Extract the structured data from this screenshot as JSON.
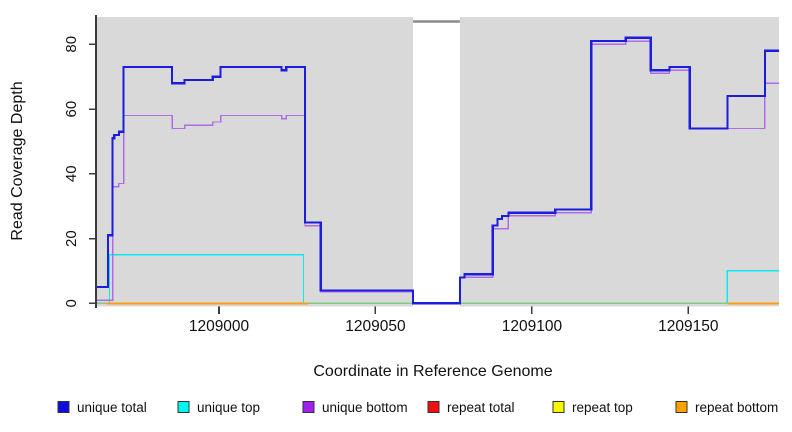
{
  "chart_data": {
    "type": "line",
    "subtype": "step-coverage",
    "title": "",
    "xlabel": "Coordinate in Reference Genome",
    "ylabel": "Read Coverage Depth",
    "xlim": [
      1208961,
      1209179
    ],
    "ylim": [
      0,
      87
    ],
    "x_ticks": [
      "1209000",
      "1209050",
      "1209100",
      "1209150"
    ],
    "x_tick_values": [
      1209000,
      1209050,
      1209100,
      1209150
    ],
    "y_ticks": [
      "0",
      "20",
      "40",
      "60",
      "80"
    ],
    "y_tick_values": [
      0,
      20,
      40,
      60,
      80
    ],
    "grid": "off",
    "background": "#d9d9d9",
    "zero_line": {
      "value": 0,
      "color": "#82cc82"
    },
    "masked_region": {
      "x_start": 1209062,
      "x_end": 1209077,
      "fill": "#ffffff",
      "cap_color": "#8a8a8a",
      "cap_value": 87
    },
    "legend_position": "bottom",
    "series": [
      {
        "name": "unique total",
        "color": "#1d1de0",
        "width": 2.2,
        "steps": [
          [
            1208961,
            5
          ],
          [
            1208964.5,
            21
          ],
          [
            1208966,
            51
          ],
          [
            1208966.5,
            52
          ],
          [
            1208968,
            53
          ],
          [
            1208969.5,
            73
          ],
          [
            1208985,
            68
          ],
          [
            1208989,
            69
          ],
          [
            1208998,
            70
          ],
          [
            1209000.5,
            73
          ],
          [
            1209020,
            72
          ],
          [
            1209021.5,
            73
          ],
          [
            1209027.5,
            25
          ],
          [
            1209032.5,
            4
          ],
          [
            1209062,
            0
          ],
          [
            1209077,
            8
          ],
          [
            1209078.5,
            9
          ],
          [
            1209087.5,
            24
          ],
          [
            1209089,
            26
          ],
          [
            1209090.5,
            27
          ],
          [
            1209092.5,
            28
          ],
          [
            1209107.5,
            29
          ],
          [
            1209119,
            81
          ],
          [
            1209130,
            82
          ],
          [
            1209138,
            72
          ],
          [
            1209144,
            73
          ],
          [
            1209150.5,
            54
          ],
          [
            1209162.5,
            64
          ],
          [
            1209174.5,
            78
          ]
        ],
        "x_end": 1209179
      },
      {
        "name": "unique top",
        "color": "#0ce8f0",
        "width": 1.4,
        "steps": [
          [
            1208961,
            0
          ],
          [
            1208965,
            15
          ],
          [
            1209027,
            0
          ],
          [
            1209162.5,
            10
          ]
        ],
        "x_end": 1209179
      },
      {
        "name": "unique bottom",
        "color": "#b06ce8",
        "width": 1.4,
        "steps": [
          [
            1208961,
            1
          ],
          [
            1208966,
            36
          ],
          [
            1208968,
            37
          ],
          [
            1208969.5,
            58
          ],
          [
            1208985,
            54
          ],
          [
            1208989,
            55
          ],
          [
            1208998,
            56
          ],
          [
            1209000.5,
            58
          ],
          [
            1209020,
            57
          ],
          [
            1209021.5,
            58
          ],
          [
            1209027.5,
            24
          ],
          [
            1209032.5,
            3.5
          ],
          [
            1209062,
            0
          ],
          [
            1209077,
            8
          ],
          [
            1209087.5,
            23
          ],
          [
            1209092.5,
            27
          ],
          [
            1209107.5,
            28
          ],
          [
            1209119,
            80
          ],
          [
            1209130,
            81
          ],
          [
            1209138,
            71
          ],
          [
            1209144,
            72
          ],
          [
            1209150.5,
            54
          ],
          [
            1209174.5,
            68
          ]
        ],
        "x_end": 1209179
      },
      {
        "name": "repeat total",
        "color": "#ee1111",
        "width": 1.4,
        "steps": [
          [
            1208961,
            0
          ]
        ],
        "x_end": 1209179
      },
      {
        "name": "repeat top",
        "color": "#f7f700",
        "width": 1.4,
        "steps": [
          [
            1208961,
            0
          ]
        ],
        "x_end": 1209179
      },
      {
        "name": "repeat bottom",
        "color": "#ffa00a",
        "width": 2,
        "steps": [
          [
            1208964,
            0
          ]
        ],
        "flat_segments": [
          [
            1208964,
            1209028.5
          ],
          [
            1209162.5,
            1209179
          ]
        ],
        "x_end": 1209179
      }
    ],
    "legend": [
      {
        "label": "unique total",
        "color": "#0d0de0"
      },
      {
        "label": "unique top",
        "color": "#00f5f5"
      },
      {
        "label": "unique bottom",
        "color": "#a020f0"
      },
      {
        "label": "repeat total",
        "color": "#ee1111"
      },
      {
        "label": "repeat top",
        "color": "#f7f700"
      },
      {
        "label": "repeat bottom",
        "color": "#ffa200"
      }
    ]
  }
}
